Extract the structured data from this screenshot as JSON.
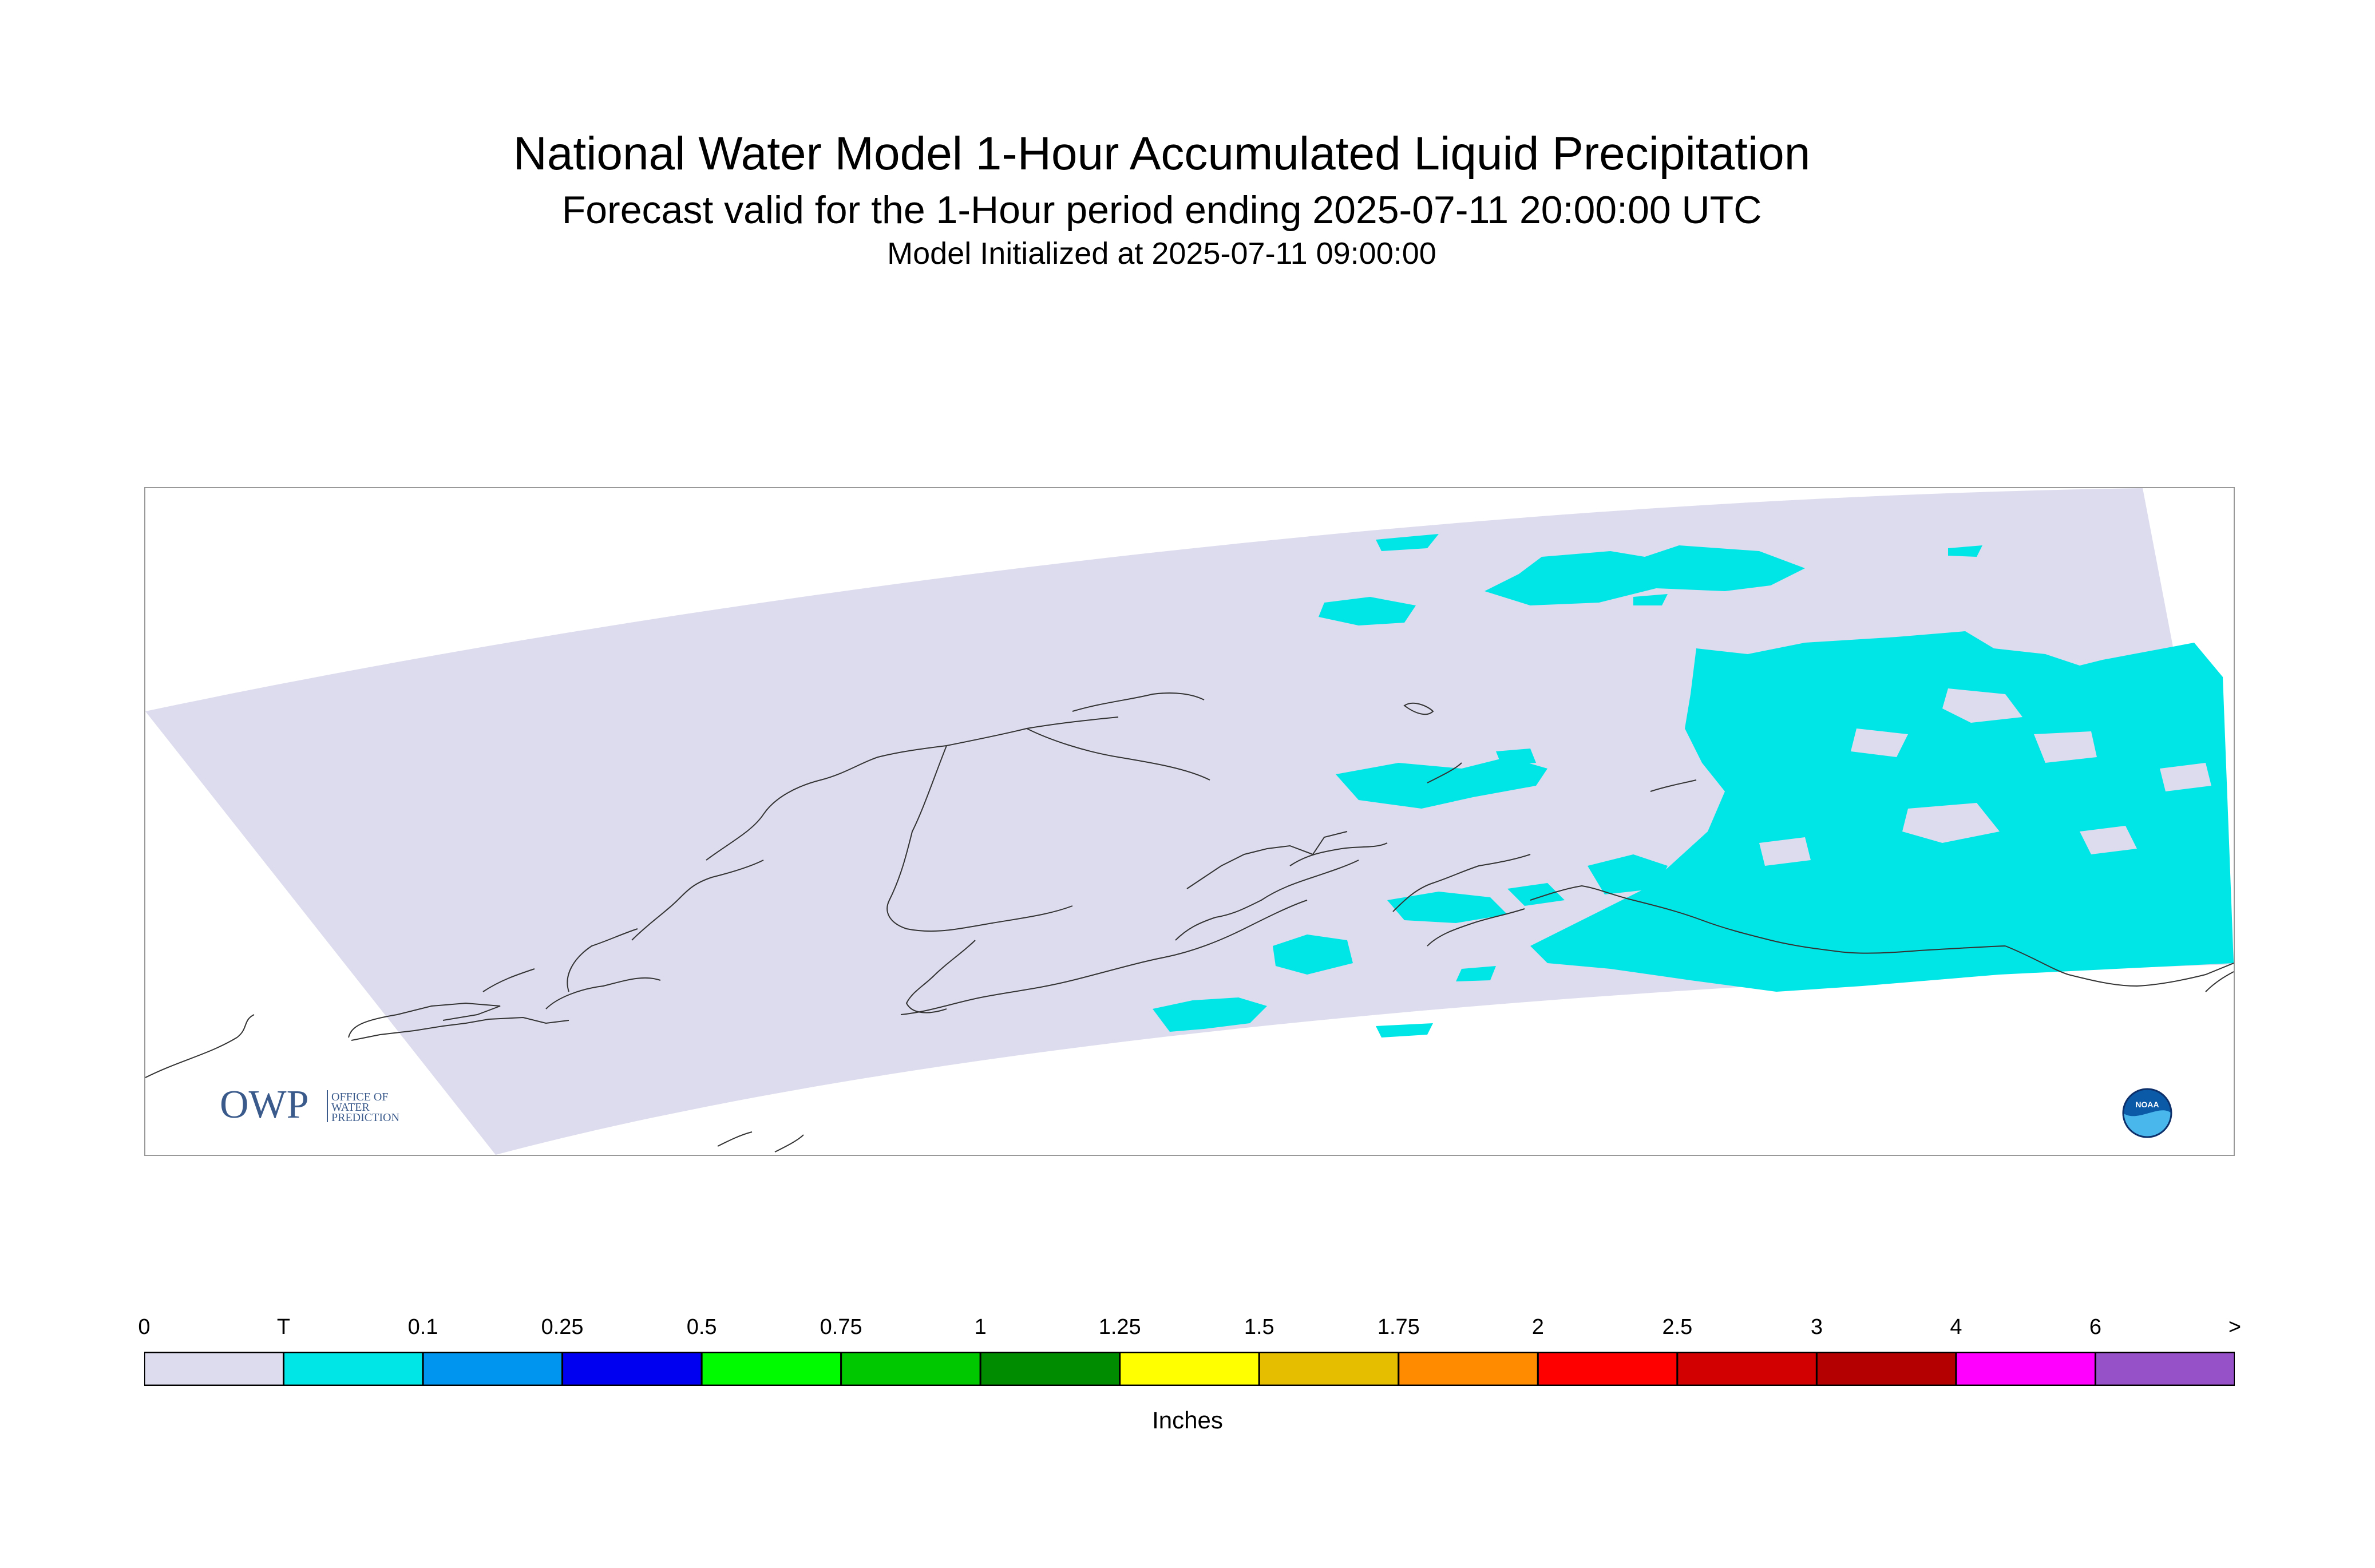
{
  "title": "National Water Model 1-Hour Accumulated Liquid Precipitation",
  "subtitle": "Forecast valid for the 1-Hour period ending 2025-07-11 20:00:00 UTC",
  "initialized": "Model Initialized at 2025-07-11 09:00:00",
  "map": {
    "background": "#ffffff",
    "domain_color": "#dcdcee",
    "precip_color": "#00e6e6",
    "coast_color": "#333333",
    "logos": {
      "owp": {
        "big": "OWP",
        "small": [
          "OFFICE OF",
          "WATER",
          "PREDICTION"
        ]
      },
      "noaa": "NOAA"
    }
  },
  "legend": {
    "labels": [
      "0",
      "T",
      "0.1",
      "0.25",
      "0.5",
      "0.75",
      "1",
      "1.25",
      "1.5",
      "1.75",
      "2",
      "2.5",
      "3",
      "4",
      "6",
      ">"
    ],
    "colors": [
      "#dcdcee",
      "#00e6e6",
      "#0096f0",
      "#0000f0",
      "#00fa00",
      "#00c800",
      "#008c00",
      "#ffff00",
      "#e6be00",
      "#ff8c00",
      "#ff0000",
      "#d20000",
      "#b40000",
      "#ff00ff",
      "#9650c8"
    ],
    "units": "Inches"
  }
}
